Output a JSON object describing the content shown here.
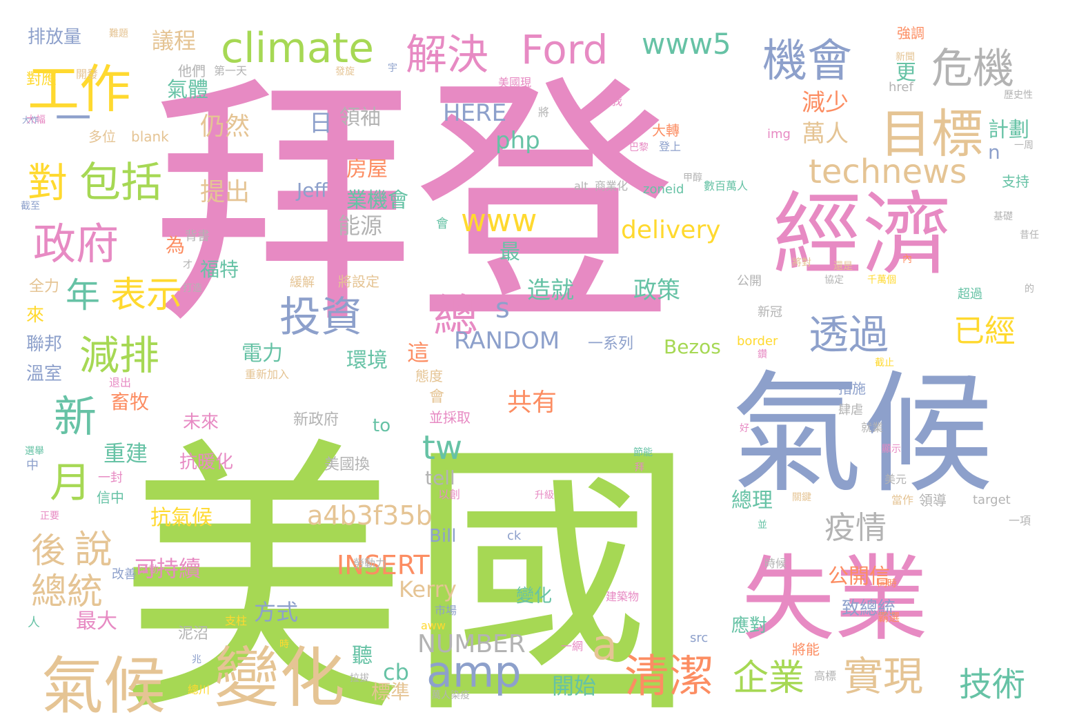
{
  "words": [
    {
      "text": "拜登",
      "color": "#e78ac3"
    },
    {
      "text": "美國",
      "color": "#a6d854"
    },
    {
      "text": "氣候",
      "color": "#8da0cb"
    },
    {
      "text": "經濟",
      "color": "#e78ac3"
    },
    {
      "text": "失業",
      "color": "#e78ac3"
    },
    {
      "text": "氣候",
      "color": "#e5c494"
    },
    {
      "text": "變化",
      "color": "#e5c494"
    },
    {
      "text": "工作",
      "color": "#ffd92f"
    },
    {
      "text": "目標",
      "color": "#e5c494"
    },
    {
      "text": "機會",
      "color": "#8da0cb"
    },
    {
      "text": "危機",
      "color": "#b3b3b3"
    },
    {
      "text": "climate",
      "color": "#a6d854"
    },
    {
      "text": "Ford",
      "color": "#e78ac3"
    },
    {
      "text": "解決",
      "color": "#e78ac3"
    },
    {
      "text": "www5",
      "color": "#66c2a5"
    },
    {
      "text": "一",
      "color": "#8da0cb"
    },
    {
      "text": "對",
      "color": "#ffd92f"
    },
    {
      "text": "包括",
      "color": "#a6d854"
    },
    {
      "text": "政府",
      "color": "#e78ac3"
    },
    {
      "text": "年",
      "color": "#66c2a5"
    },
    {
      "text": "表示",
      "color": "#ffd92f"
    },
    {
      "text": "減排",
      "color": "#a6d854"
    },
    {
      "text": "投資",
      "color": "#8da0cb"
    },
    {
      "text": "總",
      "color": "#e78ac3"
    },
    {
      "text": "s",
      "color": "#8da0cb"
    },
    {
      "text": "www",
      "color": "#ffd92f"
    },
    {
      "text": "technews",
      "color": "#e5c494"
    },
    {
      "text": "透過",
      "color": "#8da0cb"
    },
    {
      "text": "已經",
      "color": "#ffd92f"
    },
    {
      "text": "新",
      "color": "#66c2a5"
    },
    {
      "text": "月",
      "color": "#a6d854"
    },
    {
      "text": "後",
      "color": "#e5c494"
    },
    {
      "text": "說",
      "color": "#e5c494"
    },
    {
      "text": "總統",
      "color": "#e5c494"
    },
    {
      "text": "a",
      "color": "#e5c494"
    },
    {
      "text": "amp",
      "color": "#8da0cb"
    },
    {
      "text": "清潔",
      "color": "#fc8d62"
    },
    {
      "text": "企業",
      "color": "#a6d854"
    },
    {
      "text": "實現",
      "color": "#e5c494"
    },
    {
      "text": "技術",
      "color": "#66c2a5"
    },
    {
      "text": "疫情",
      "color": "#b3b3b3"
    },
    {
      "text": "tw",
      "color": "#66c2a5"
    },
    {
      "text": "a4b3f35b",
      "color": "#e5c494"
    },
    {
      "text": "INSERT",
      "color": "#fc8d62"
    },
    {
      "text": "RANDOM",
      "color": "#8da0cb"
    },
    {
      "text": "NUMBER",
      "color": "#b3b3b3"
    },
    {
      "text": "delivery",
      "color": "#ffd92f"
    },
    {
      "text": "HERE",
      "color": "#8da0cb"
    },
    {
      "text": "php",
      "color": "#66c2a5"
    },
    {
      "text": "減少",
      "color": "#fc8d62"
    },
    {
      "text": "萬人",
      "color": "#e5c494"
    },
    {
      "text": "計劃",
      "color": "#66c2a5"
    },
    {
      "text": "n",
      "color": "#8da0cb"
    },
    {
      "text": "更",
      "color": "#66c2a5"
    },
    {
      "text": "排放量",
      "color": "#8da0cb"
    },
    {
      "text": "議程",
      "color": "#e5c494"
    },
    {
      "text": "氣體",
      "color": "#66c2a5"
    },
    {
      "text": "仍然",
      "color": "#e5c494"
    },
    {
      "text": "日",
      "color": "#8da0cb"
    },
    {
      "text": "領袖",
      "color": "#b3b3b3"
    },
    {
      "text": "提出",
      "color": "#e5c494"
    },
    {
      "text": "房屋",
      "color": "#fc8d62"
    },
    {
      "text": "業機會",
      "color": "#66c2a5"
    },
    {
      "text": "Jeff",
      "color": "#8da0cb"
    },
    {
      "text": "能源",
      "color": "#b3b3b3"
    },
    {
      "text": "為",
      "color": "#fc8d62"
    },
    {
      "text": "最",
      "color": "#66c2a5"
    },
    {
      "text": "造就",
      "color": "#66c2a5"
    },
    {
      "text": "政策",
      "color": "#66c2a5"
    },
    {
      "text": "電力",
      "color": "#66c2a5"
    },
    {
      "text": "環境",
      "color": "#66c2a5"
    },
    {
      "text": "這",
      "color": "#fc8d62"
    },
    {
      "text": "共有",
      "color": "#fc8d62"
    },
    {
      "text": "畜牧",
      "color": "#fc8d62"
    },
    {
      "text": "重建",
      "color": "#66c2a5"
    },
    {
      "text": "抗氣候",
      "color": "#ffd92f"
    },
    {
      "text": "可持續",
      "color": "#e78ac3"
    },
    {
      "text": "方式",
      "color": "#8da0cb"
    },
    {
      "text": "最大",
      "color": "#e78ac3"
    },
    {
      "text": "Kerry",
      "color": "#e5c494"
    },
    {
      "text": "公開信",
      "color": "#fc8d62"
    },
    {
      "text": "總理",
      "color": "#66c2a5"
    },
    {
      "text": "致總統",
      "color": "#8da0cb"
    },
    {
      "text": "應對",
      "color": "#66c2a5"
    },
    {
      "text": "開始",
      "color": "#66c2a5"
    },
    {
      "text": "聽",
      "color": "#66c2a5"
    },
    {
      "text": "cb",
      "color": "#66c2a5"
    },
    {
      "text": "標準",
      "color": "#e5c494"
    },
    {
      "text": "變化",
      "color": "#66c2a5"
    },
    {
      "text": "Bezos",
      "color": "#a6d854"
    },
    {
      "text": "一系列",
      "color": "#8da0cb"
    },
    {
      "text": "to",
      "color": "#66c2a5"
    },
    {
      "text": "未來",
      "color": "#e78ac3"
    },
    {
      "text": "新政府",
      "color": "#b3b3b3"
    },
    {
      "text": "抗暖化",
      "color": "#e78ac3"
    },
    {
      "text": "美國換",
      "color": "#b3b3b3"
    },
    {
      "text": "tell",
      "color": "#b3b3b3"
    },
    {
      "text": "Bill",
      "color": "#8da0cb"
    },
    {
      "text": "福特",
      "color": "#66c2a5"
    },
    {
      "text": "聯邦",
      "color": "#8da0cb"
    },
    {
      "text": "溫室",
      "color": "#8da0cb"
    },
    {
      "text": "來",
      "color": "#ffd92f"
    },
    {
      "text": "全力",
      "color": "#e5c494"
    },
    {
      "text": "對應",
      "color": "#ffd92f"
    },
    {
      "text": "開發",
      "color": "#e5c494"
    },
    {
      "text": "他們",
      "color": "#b3b3b3"
    },
    {
      "text": "第一天",
      "color": "#b3b3b3"
    },
    {
      "text": "多位",
      "color": "#e5c494"
    },
    {
      "text": "blank",
      "color": "#e5c494"
    },
    {
      "text": "大幅",
      "color": "#e78ac3"
    },
    {
      "text": "截至",
      "color": "#8da0cb"
    },
    {
      "text": "背書",
      "color": "#b3b3b3"
    },
    {
      "text": "才",
      "color": "#b3b3b3"
    },
    {
      "text": "打造",
      "color": "#b3b3b3"
    },
    {
      "text": "緩解",
      "color": "#e5c494"
    },
    {
      "text": "將設定",
      "color": "#e5c494"
    },
    {
      "text": "退出",
      "color": "#e78ac3"
    },
    {
      "text": "重新加入",
      "color": "#e5c494"
    },
    {
      "text": "態度",
      "color": "#e5c494"
    },
    {
      "text": "會",
      "color": "#e5c494"
    },
    {
      "text": "並採取",
      "color": "#e78ac3"
    },
    {
      "text": "選舉",
      "color": "#66c2a5"
    },
    {
      "text": "中",
      "color": "#8da0cb"
    },
    {
      "text": "一封",
      "color": "#e78ac3"
    },
    {
      "text": "信中",
      "color": "#66c2a5"
    },
    {
      "text": "正要",
      "color": "#e78ac3"
    },
    {
      "text": "改善",
      "color": "#8da0cb"
    },
    {
      "text": "活動",
      "color": "#e78ac3"
    },
    {
      "text": "人",
      "color": "#66c2a5"
    },
    {
      "text": "泥沼",
      "color": "#b3b3b3"
    },
    {
      "text": "支柱",
      "color": "#ffd92f"
    },
    {
      "text": "勞動力",
      "color": "#b3b3b3"
    },
    {
      "text": "市場",
      "color": "#8da0cb"
    },
    {
      "text": "aww",
      "color": "#ffd92f"
    },
    {
      "text": "時",
      "color": "#ffd92f"
    },
    {
      "text": "兆",
      "color": "#8da0cb"
    },
    {
      "text": "拉拔",
      "color": "#b3b3b3"
    },
    {
      "text": "總川",
      "color": "#ffd92f"
    },
    {
      "text": "萬人染疫",
      "color": "#b3b3b3"
    },
    {
      "text": "一網",
      "color": "#e78ac3"
    },
    {
      "text": "以創",
      "color": "#e78ac3"
    },
    {
      "text": "升級",
      "color": "#e78ac3"
    },
    {
      "text": "ck",
      "color": "#8da0cb"
    },
    {
      "text": "節能",
      "color": "#66c2a5"
    },
    {
      "text": "拜",
      "color": "#e78ac3"
    },
    {
      "text": "建築物",
      "color": "#e78ac3"
    },
    {
      "text": "src",
      "color": "#8da0cb"
    },
    {
      "text": "將能",
      "color": "#fc8d62"
    },
    {
      "text": "高標",
      "color": "#b3b3b3"
    },
    {
      "text": "霸選",
      "color": "#fc8d62"
    },
    {
      "text": "時候",
      "color": "#b3b3b3"
    },
    {
      "text": "同時",
      "color": "#fc8d62"
    },
    {
      "text": "美元",
      "color": "#b3b3b3"
    },
    {
      "text": "當作",
      "color": "#e5c494"
    },
    {
      "text": "領導",
      "color": "#b3b3b3"
    },
    {
      "text": "target",
      "color": "#b3b3b3"
    },
    {
      "text": "一項",
      "color": "#b3b3b3"
    },
    {
      "text": "並",
      "color": "#66c2a5"
    },
    {
      "text": "關鍵",
      "color": "#e5c494"
    },
    {
      "text": "顯示",
      "color": "#e78ac3"
    },
    {
      "text": "就業",
      "color": "#b3b3b3"
    },
    {
      "text": "好",
      "color": "#e78ac3"
    },
    {
      "text": "肆虐",
      "color": "#b3b3b3"
    },
    {
      "text": "措施",
      "color": "#8da0cb"
    },
    {
      "text": "截止",
      "color": "#ffd92f"
    },
    {
      "text": "新冠",
      "color": "#b3b3b3"
    },
    {
      "text": "border",
      "color": "#ffd92f"
    },
    {
      "text": "鑽",
      "color": "#e78ac3"
    },
    {
      "text": "公開",
      "color": "#b3b3b3"
    },
    {
      "text": "超過",
      "color": "#66c2a5"
    },
    {
      "text": "的",
      "color": "#b3b3b3"
    },
    {
      "text": "協定",
      "color": "#b3b3b3"
    },
    {
      "text": "千萬個",
      "color": "#ffd92f"
    },
    {
      "text": "內",
      "color": "#fc8d62"
    },
    {
      "text": "還是",
      "color": "#e5c494"
    },
    {
      "text": "將對",
      "color": "#e5c494"
    },
    {
      "text": "會",
      "color": "#66c2a5"
    },
    {
      "text": "alt",
      "color": "#b3b3b3"
    },
    {
      "text": "商業化",
      "color": "#b3b3b3"
    },
    {
      "text": "zoneid",
      "color": "#66c2a5"
    },
    {
      "text": "數百萬人",
      "color": "#66c2a5"
    },
    {
      "text": "支持",
      "color": "#66c2a5"
    },
    {
      "text": "基礎",
      "color": "#b3b3b3"
    },
    {
      "text": "昔任",
      "color": "#b3b3b3"
    },
    {
      "text": "一周",
      "color": "#b3b3b3"
    },
    {
      "text": "巴黎",
      "color": "#e78ac3"
    },
    {
      "text": "登上",
      "color": "#8da0cb"
    },
    {
      "text": "甲醇",
      "color": "#b3b3b3"
    },
    {
      "text": "大轉",
      "color": "#fc8d62"
    },
    {
      "text": "img",
      "color": "#e78ac3"
    },
    {
      "text": "當我",
      "color": "#e78ac3"
    },
    {
      "text": "將",
      "color": "#b3b3b3"
    },
    {
      "text": "美國現",
      "color": "#e78ac3"
    },
    {
      "text": "href",
      "color": "#b3b3b3"
    },
    {
      "text": "歷史性",
      "color": "#b3b3b3"
    },
    {
      "text": "強調",
      "color": "#fc8d62"
    },
    {
      "text": "新聞",
      "color": "#e5c494"
    },
    {
      "text": "宇",
      "color": "#8da0cb"
    },
    {
      "text": "發旋",
      "color": "#e5c494"
    },
    {
      "text": "難題",
      "color": "#e5c494"
    },
    {
      "text": "大作",
      "color": "#8da0cb"
    }
  ]
}
